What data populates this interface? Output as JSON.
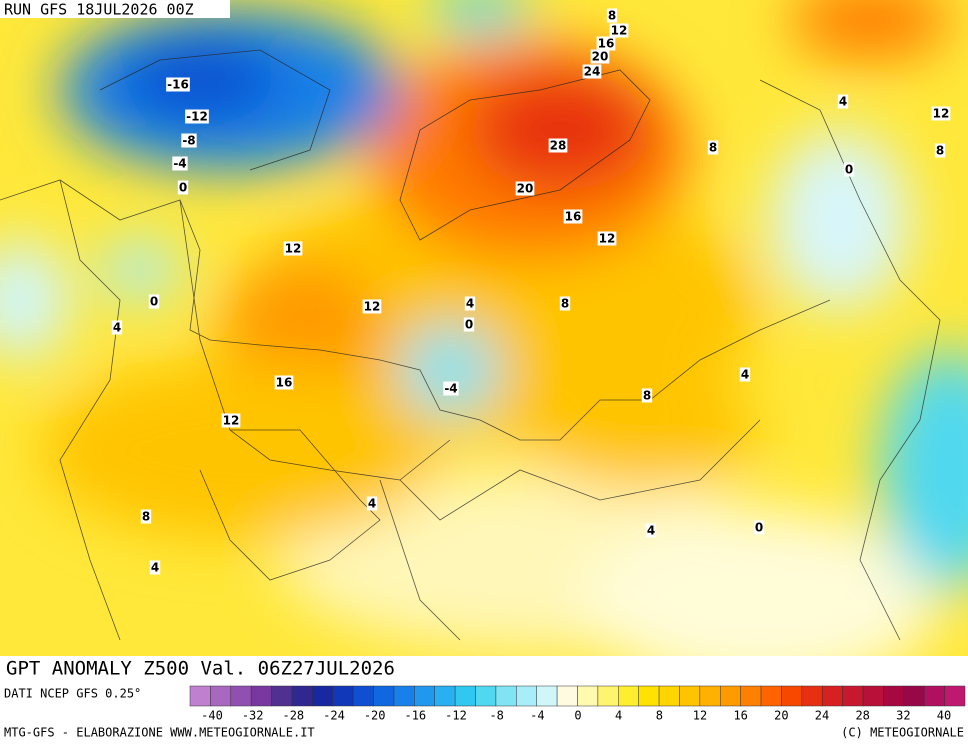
{
  "header": {
    "run": "RUN GFS 18JUL2026 00Z",
    "title": "GPT ANOMALY Z500 Val. 06Z27JUL2026"
  },
  "map": {
    "contour_labels": [
      -16,
      -12,
      -8,
      -4,
      0,
      8,
      12,
      16,
      20,
      24,
      28,
      20,
      16,
      12,
      8,
      4,
      12,
      8,
      0,
      12,
      0,
      4,
      12,
      4,
      0,
      8,
      16,
      -4,
      8,
      4,
      12,
      4,
      8,
      4,
      0,
      4
    ]
  },
  "colorbar": {
    "source": "DATI NCEP GFS 0.25°",
    "ticks": [
      -40,
      -32,
      -28,
      -24,
      -20,
      -16,
      -12,
      -8,
      -4,
      0,
      4,
      8,
      12,
      16,
      20,
      24,
      28,
      32,
      40
    ],
    "colors": [
      "#c080d0",
      "#a868c0",
      "#9050b0",
      "#7838a0",
      "#503090",
      "#302890",
      "#1828a0",
      "#1038b8",
      "#1050d0",
      "#1068e0",
      "#1880e8",
      "#2098f0",
      "#28b0f0",
      "#30c8f0",
      "#50d8f0",
      "#80e4f4",
      "#a8eef8",
      "#d0f6fa",
      "#fffbe0",
      "#fffab0",
      "#fff470",
      "#ffee30",
      "#ffe200",
      "#ffd400",
      "#ffc400",
      "#ffb000",
      "#ff9a00",
      "#ff8000",
      "#ff6400",
      "#f84800",
      "#e83010",
      "#d82020",
      "#c81830",
      "#b81038",
      "#a80840",
      "#980848",
      "#b01060",
      "#c01870"
    ]
  },
  "footer": {
    "credit": "MTG-GFS - ELABORAZIONE WWW.METEOGIORNALE.IT",
    "copyright": "(C) METEOGIORNALE"
  }
}
